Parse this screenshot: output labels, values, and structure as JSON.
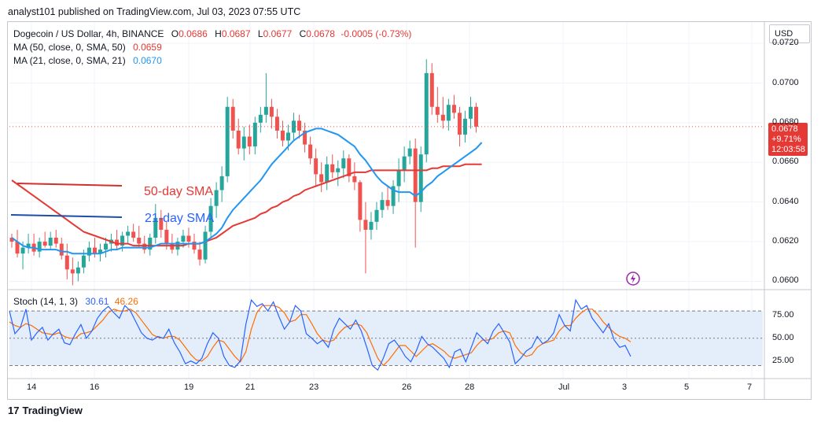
{
  "header": {
    "author": "analyst101 published on TradingView.com, Jul 03, 2023 07:55 UTC"
  },
  "legend": {
    "symbol": "Dogecoin / US Dollar, 4h, BINANCE",
    "open_label": "O",
    "open": "0.0686",
    "high_label": "H",
    "high": "0.0687",
    "low_label": "L",
    "low": "0.0677",
    "close_label": "C",
    "close": "0.0678",
    "change": "-0.0005 (-0.73%)",
    "ma50_label": "MA (50, close, 0, SMA, 50)",
    "ma50_value": "0.0659",
    "ma21_label": "MA (21, close, 0, SMA, 21)",
    "ma21_value": "0.0670"
  },
  "annotations": {
    "sma50": "50-day SMA",
    "sma21": "21-day SMA"
  },
  "stoch": {
    "label": "Stoch (14, 1, 3)",
    "k": "30.61",
    "d": "46.26"
  },
  "price_scale": {
    "currency": "USD",
    "ticks": [
      "0.0720",
      "0.0700",
      "0.0680",
      "0.0660",
      "0.0640",
      "0.0620",
      "0.0600"
    ],
    "tag_price": "0.0678",
    "tag_change": "+9.71%",
    "tag_countdown": "12:03:58"
  },
  "stoch_scale": {
    "ticks": [
      "75.00",
      "50.00",
      "25.00"
    ]
  },
  "time_axis": {
    "labels": [
      "14",
      "16",
      "19",
      "21",
      "23",
      "26",
      "28",
      "Jul",
      "3",
      "5",
      "7"
    ]
  },
  "brand": {
    "logo": "17",
    "name": "TradingView"
  },
  "colors": {
    "up": "#26a69a",
    "down": "#ef5350",
    "sma50": "#e53935",
    "sma21": "#2196f3",
    "stoch_k": "#2962ff",
    "stoch_d": "#ff6d00",
    "stoch_band": "#e3eefa"
  },
  "chart_data": {
    "type": "candlestick",
    "title": "Dogecoin / US Dollar, 4h, BINANCE",
    "ylabel": "USD",
    "ylim": [
      0.0597,
      0.0726
    ],
    "x_tick_labels": [
      "14",
      "16",
      "19",
      "21",
      "23",
      "26",
      "28",
      "Jul",
      "3",
      "5",
      "7"
    ],
    "candles": {
      "columns": [
        "open",
        "high",
        "low",
        "close"
      ],
      "values": [
        [
          0.0622,
          0.0624,
          0.0617,
          0.062
        ],
        [
          0.062,
          0.0626,
          0.0612,
          0.0614
        ],
        [
          0.0614,
          0.062,
          0.0606,
          0.0617
        ],
        [
          0.0617,
          0.0624,
          0.0614,
          0.0619
        ],
        [
          0.0619,
          0.0624,
          0.0613,
          0.0615
        ],
        [
          0.0615,
          0.0622,
          0.0612,
          0.062
        ],
        [
          0.062,
          0.0625,
          0.0617,
          0.0618
        ],
        [
          0.0618,
          0.0625,
          0.0616,
          0.0622
        ],
        [
          0.0622,
          0.0626,
          0.0617,
          0.0619
        ],
        [
          0.0619,
          0.0622,
          0.0611,
          0.0613
        ],
        [
          0.0613,
          0.0619,
          0.0601,
          0.0606
        ],
        [
          0.0606,
          0.0612,
          0.0598,
          0.0604
        ],
        [
          0.0604,
          0.061,
          0.06,
          0.0607
        ],
        [
          0.0607,
          0.0616,
          0.0604,
          0.0613
        ],
        [
          0.0613,
          0.062,
          0.061,
          0.0617
        ],
        [
          0.0617,
          0.0622,
          0.0612,
          0.0614
        ],
        [
          0.0614,
          0.0619,
          0.061,
          0.0616
        ],
        [
          0.0616,
          0.0622,
          0.0612,
          0.0619
        ],
        [
          0.0619,
          0.0624,
          0.0615,
          0.0621
        ],
        [
          0.0621,
          0.0626,
          0.0616,
          0.0618
        ],
        [
          0.0618,
          0.0625,
          0.0615,
          0.0623
        ],
        [
          0.0623,
          0.0628,
          0.0619,
          0.0625
        ],
        [
          0.0625,
          0.0629,
          0.062,
          0.0622
        ],
        [
          0.0622,
          0.0628,
          0.0617,
          0.0619
        ],
        [
          0.0619,
          0.0623,
          0.0614,
          0.0616
        ],
        [
          0.0616,
          0.0624,
          0.0613,
          0.0622
        ],
        [
          0.0622,
          0.0639,
          0.0619,
          0.0632
        ],
        [
          0.0632,
          0.0636,
          0.0622,
          0.0626
        ],
        [
          0.0626,
          0.063,
          0.0616,
          0.0619
        ],
        [
          0.0619,
          0.0624,
          0.0614,
          0.0616
        ],
        [
          0.0616,
          0.0622,
          0.0613,
          0.062
        ],
        [
          0.062,
          0.0626,
          0.0617,
          0.0623
        ],
        [
          0.0623,
          0.0627,
          0.0617,
          0.062
        ],
        [
          0.062,
          0.0624,
          0.0614,
          0.0616
        ],
        [
          0.0616,
          0.062,
          0.0608,
          0.0611
        ],
        [
          0.0611,
          0.0628,
          0.0609,
          0.0625
        ],
        [
          0.0625,
          0.0642,
          0.0622,
          0.0638
        ],
        [
          0.0638,
          0.065,
          0.0632,
          0.0646
        ],
        [
          0.0646,
          0.0658,
          0.064,
          0.0653
        ],
        [
          0.0653,
          0.0693,
          0.065,
          0.0688
        ],
        [
          0.0688,
          0.0692,
          0.0672,
          0.0676
        ],
        [
          0.0676,
          0.0682,
          0.0664,
          0.0667
        ],
        [
          0.0667,
          0.0678,
          0.0661,
          0.0673
        ],
        [
          0.0673,
          0.0679,
          0.0664,
          0.0668
        ],
        [
          0.0668,
          0.0683,
          0.0664,
          0.068
        ],
        [
          0.068,
          0.0688,
          0.0675,
          0.0684
        ],
        [
          0.0684,
          0.0705,
          0.068,
          0.0688
        ],
        [
          0.0688,
          0.0692,
          0.0677,
          0.0683
        ],
        [
          0.0683,
          0.0687,
          0.0672,
          0.0676
        ],
        [
          0.0676,
          0.0681,
          0.0668,
          0.0671
        ],
        [
          0.0671,
          0.0679,
          0.0666,
          0.0675
        ],
        [
          0.0675,
          0.0685,
          0.0671,
          0.0681
        ],
        [
          0.0681,
          0.0684,
          0.0672,
          0.0676
        ],
        [
          0.0676,
          0.068,
          0.0665,
          0.0669
        ],
        [
          0.0669,
          0.0673,
          0.0659,
          0.0662
        ],
        [
          0.0662,
          0.0667,
          0.0648,
          0.0654
        ],
        [
          0.0654,
          0.066,
          0.0645,
          0.065
        ],
        [
          0.065,
          0.0663,
          0.0646,
          0.0659
        ],
        [
          0.0659,
          0.0664,
          0.0652,
          0.0655
        ],
        [
          0.0655,
          0.0661,
          0.0648,
          0.0657
        ],
        [
          0.0657,
          0.0666,
          0.0652,
          0.0662
        ],
        [
          0.0662,
          0.0664,
          0.065,
          0.0653
        ],
        [
          0.0653,
          0.066,
          0.0646,
          0.065
        ],
        [
          0.065,
          0.0651,
          0.0625,
          0.0631
        ],
        [
          0.0631,
          0.064,
          0.0604,
          0.0626
        ],
        [
          0.0626,
          0.0635,
          0.0621,
          0.063
        ],
        [
          0.063,
          0.064,
          0.0626,
          0.0636
        ],
        [
          0.0636,
          0.0645,
          0.0632,
          0.0641
        ],
        [
          0.0641,
          0.0648,
          0.0636,
          0.0638
        ],
        [
          0.0638,
          0.0651,
          0.0634,
          0.0648
        ],
        [
          0.0648,
          0.0662,
          0.064,
          0.0656
        ],
        [
          0.0656,
          0.0668,
          0.065,
          0.0663
        ],
        [
          0.0663,
          0.0671,
          0.0659,
          0.0667
        ],
        [
          0.0667,
          0.0672,
          0.0617,
          0.064
        ],
        [
          0.064,
          0.0668,
          0.0635,
          0.0664
        ],
        [
          0.0664,
          0.0712,
          0.066,
          0.0705
        ],
        [
          0.0705,
          0.071,
          0.0684,
          0.0688
        ],
        [
          0.0688,
          0.0698,
          0.068,
          0.0684
        ],
        [
          0.0684,
          0.0693,
          0.0677,
          0.0681
        ],
        [
          0.0681,
          0.0692,
          0.0676,
          0.0689
        ],
        [
          0.0689,
          0.0694,
          0.0682,
          0.0685
        ],
        [
          0.0685,
          0.0688,
          0.0668,
          0.0674
        ],
        [
          0.0674,
          0.0686,
          0.067,
          0.0682
        ],
        [
          0.0682,
          0.0693,
          0.0677,
          0.0688
        ],
        [
          0.0688,
          0.069,
          0.0675,
          0.0678
        ]
      ]
    },
    "series": [
      {
        "name": "MA (50, close, 0, SMA, 50)",
        "values": [
          0.0651,
          0.0649,
          0.0647,
          0.0645,
          0.0643,
          0.0641,
          0.0639,
          0.0637,
          0.0635,
          0.0633,
          0.0631,
          0.0629,
          0.0627,
          0.0625,
          0.0624,
          0.0623,
          0.0622,
          0.0621,
          0.062,
          0.0619,
          0.0619,
          0.0619,
          0.0618,
          0.0618,
          0.0618,
          0.0618,
          0.0618,
          0.0618,
          0.0618,
          0.0618,
          0.0618,
          0.0618,
          0.0619,
          0.0619,
          0.0619,
          0.062,
          0.0621,
          0.0622,
          0.0624,
          0.0626,
          0.0628,
          0.0629,
          0.063,
          0.0631,
          0.0632,
          0.0634,
          0.0635,
          0.0637,
          0.0638,
          0.064,
          0.0641,
          0.0643,
          0.0644,
          0.0646,
          0.0647,
          0.0648,
          0.0649,
          0.065,
          0.0651,
          0.0652,
          0.0653,
          0.0654,
          0.0655,
          0.0655,
          0.0655,
          0.0656,
          0.0656,
          0.0656,
          0.0656,
          0.0656,
          0.0656,
          0.0656,
          0.0656,
          0.0656,
          0.0656,
          0.0656,
          0.0657,
          0.0657,
          0.0658,
          0.0658,
          0.0658,
          0.0658,
          0.0659,
          0.0659,
          0.0659,
          0.0659
        ]
      },
      {
        "name": "MA (21, close, 0, SMA, 21)",
        "values": [
          0.0622,
          0.062,
          0.0618,
          0.0617,
          0.0617,
          0.0616,
          0.0616,
          0.0616,
          0.0616,
          0.0615,
          0.0615,
          0.0614,
          0.0614,
          0.0614,
          0.0614,
          0.0614,
          0.0614,
          0.0615,
          0.0616,
          0.0616,
          0.0617,
          0.0617,
          0.0617,
          0.0617,
          0.0617,
          0.0617,
          0.0618,
          0.0619,
          0.0619,
          0.0619,
          0.0619,
          0.0619,
          0.0619,
          0.0619,
          0.0619,
          0.062,
          0.0622,
          0.0624,
          0.0627,
          0.0632,
          0.0636,
          0.0639,
          0.0642,
          0.0645,
          0.0648,
          0.0651,
          0.0655,
          0.0659,
          0.0662,
          0.0665,
          0.0668,
          0.0671,
          0.0673,
          0.0675,
          0.0676,
          0.0677,
          0.0677,
          0.0676,
          0.0675,
          0.0674,
          0.0672,
          0.067,
          0.0668,
          0.0664,
          0.0661,
          0.0657,
          0.0653,
          0.065,
          0.0648,
          0.0646,
          0.0645,
          0.0645,
          0.0645,
          0.0643,
          0.0645,
          0.0648,
          0.065,
          0.0653,
          0.0655,
          0.0657,
          0.0659,
          0.0661,
          0.0663,
          0.0665,
          0.0667,
          0.067
        ]
      }
    ],
    "stochastic": {
      "ylim": [
        10,
        100
      ],
      "levels": [
        80,
        50,
        20
      ],
      "k": [
        80,
        55,
        62,
        82,
        48,
        56,
        62,
        48,
        55,
        60,
        45,
        43,
        55,
        65,
        50,
        58,
        72,
        80,
        85,
        78,
        72,
        86,
        80,
        68,
        56,
        50,
        48,
        52,
        50,
        60,
        45,
        35,
        22,
        25,
        22,
        28,
        44,
        56,
        50,
        30,
        20,
        18,
        25,
        65,
        92,
        85,
        88,
        80,
        90,
        74,
        60,
        68,
        86,
        80,
        55,
        50,
        44,
        48,
        40,
        60,
        72,
        66,
        60,
        70,
        58,
        40,
        20,
        15,
        28,
        44,
        48,
        40,
        30,
        24,
        36,
        52,
        44,
        40,
        34,
        28,
        18,
        35,
        38,
        24,
        40,
        56,
        50,
        44,
        58,
        66,
        56,
        46,
        22,
        28,
        36,
        40,
        52,
        44,
        48,
        56,
        76,
        64,
        58,
        92,
        82,
        86,
        72,
        64,
        56,
        66,
        48,
        40,
        42,
        30
      ],
      "d": [
        68,
        64,
        62,
        66,
        64,
        60,
        56,
        55,
        54,
        56,
        52,
        50,
        50,
        55,
        56,
        58,
        64,
        70,
        78,
        82,
        80,
        80,
        82,
        78,
        70,
        62,
        54,
        51,
        50,
        52,
        52,
        48,
        40,
        32,
        26,
        25,
        30,
        40,
        48,
        46,
        38,
        30,
        24,
        35,
        60,
        78,
        86,
        86,
        86,
        84,
        78,
        68,
        70,
        76,
        76,
        66,
        55,
        48,
        46,
        48,
        56,
        62,
        64,
        66,
        64,
        56,
        42,
        28,
        20,
        26,
        34,
        42,
        42,
        36,
        30,
        36,
        42,
        44,
        40,
        36,
        30,
        28,
        30,
        32,
        34,
        42,
        48,
        48,
        50,
        56,
        58,
        56,
        42,
        34,
        30,
        32,
        40,
        44,
        46,
        48,
        58,
        64,
        64,
        72,
        78,
        82,
        82,
        76,
        68,
        62,
        56,
        52,
        50,
        46
      ]
    }
  }
}
